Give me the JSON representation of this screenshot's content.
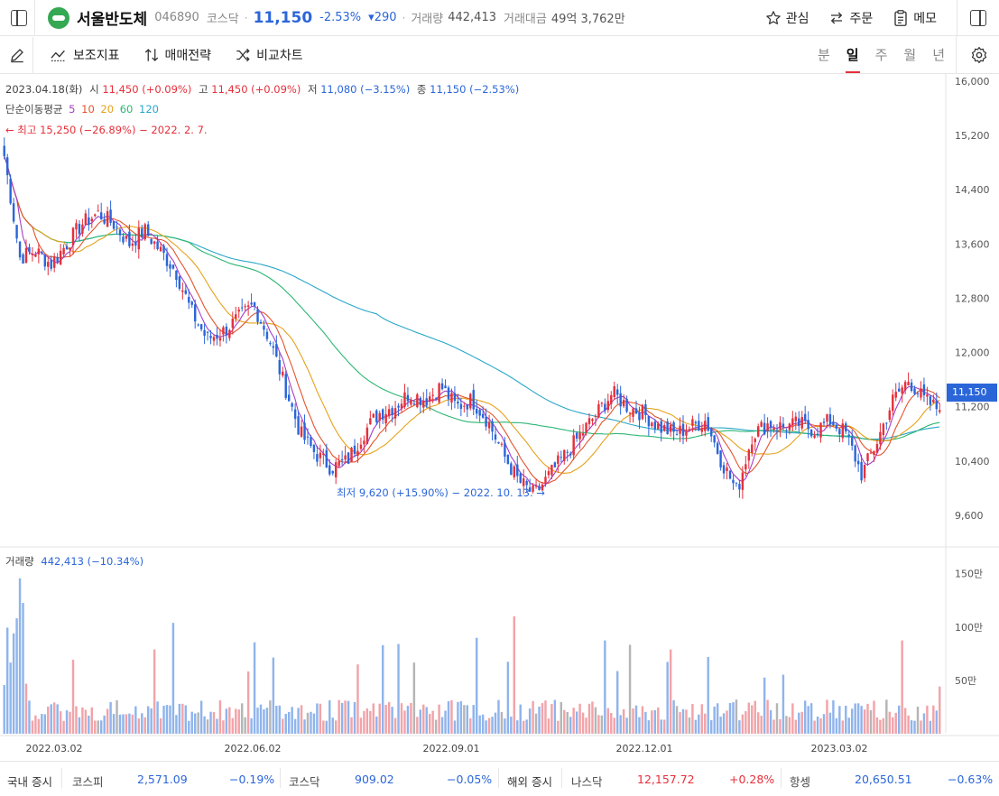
{
  "header": {
    "stock_name": "서울반도체",
    "stock_code": "046890",
    "market": "코스닥",
    "price": "11,150",
    "change_pct": "-2.53%",
    "change_amt": "▾290",
    "volume_label": "거래량",
    "volume": "442,413",
    "amount_label": "거래대금",
    "amount": "49억 3,762만",
    "actions": {
      "watch": "관심",
      "order": "주문",
      "memo": "메모"
    }
  },
  "toolbar": {
    "indicators": "보조지표",
    "strategy": "매매전략",
    "compare": "비교차트",
    "periods": [
      "분",
      "일",
      "주",
      "월",
      "년"
    ],
    "active_period": "일"
  },
  "ohlc": {
    "date": "2023.04.18(화)",
    "open_label": "시",
    "open": "11,450 (+0.09%)",
    "high_label": "고",
    "high": "11,450 (+0.09%)",
    "low_label": "저",
    "low": "11,080 (−3.15%)",
    "close_label": "종",
    "close": "11,150 (−2.53%)"
  },
  "ma": {
    "label": "단순이동평균",
    "periods": [
      "5",
      "10",
      "20",
      "60",
      "120"
    ],
    "colors": [
      "#a53ec8",
      "#e5542d",
      "#e6a21b",
      "#2bb673",
      "#2aa7c9"
    ]
  },
  "annotations": {
    "high_text": "← 최고 15,250 (−26.89%) − 2022. 2. 7.",
    "low_text": "최저 9,620 (+15.90%) − 2022. 10. 13. →"
  },
  "current_price_tag": "11,150",
  "volume_info": {
    "label": "거래량",
    "value": "442,413 (−10.34%)"
  },
  "colors": {
    "up": "#e5303b",
    "down": "#2b66d9",
    "up_vol": "#f2a3a8",
    "down_vol": "#8fb4ec",
    "flat_vol": "#b5b5b5"
  },
  "chart_data": {
    "type": "candlestick",
    "y_axis_ticks": [
      "16,000",
      "15,200",
      "14,400",
      "13,600",
      "12,800",
      "12,000",
      "11,200",
      "10,400",
      "9,600"
    ],
    "ylim": [
      9000,
      16000
    ],
    "volume_axis_ticks": [
      "150만",
      "100만",
      "50만"
    ],
    "x_axis_ticks": [
      "2022.03.02",
      "2022.06.02",
      "2022.09.01",
      "2022.12.01",
      "2023.03.02"
    ],
    "close_path": [
      14900,
      13400,
      13500,
      13300,
      13600,
      13900,
      14050,
      13900,
      13600,
      13800,
      13500,
      13200,
      12600,
      12200,
      12300,
      12500,
      12700,
      12200,
      11500,
      10800,
      10500,
      10300,
      10400,
      10800,
      11100,
      11200,
      11400,
      11300,
      11500,
      11200,
      11300,
      11000,
      10500,
      10100,
      9900,
      10200,
      10500,
      10800,
      11100,
      11400,
      11200,
      11100,
      10900,
      10800,
      10900,
      11000,
      10400,
      9950,
      10800,
      10950,
      10900,
      10950,
      10850,
      11000,
      10800,
      10200,
      10700,
      11300,
      11600,
      11300,
      11150
    ],
    "last_close": 11150,
    "last_volume": 442413
  },
  "footer": {
    "domestic_label": "국내 증시",
    "kospi_label": "코스피",
    "kospi_value": "2,571.09",
    "kospi_change": "−0.19%",
    "kosdaq_label": "코스닥",
    "kosdaq_value": "909.02",
    "kosdaq_change": "−0.05%",
    "overseas_label": "해외 증시",
    "nasdaq_label": "나스닥",
    "nasdaq_value": "12,157.72",
    "nasdaq_change": "+0.28%",
    "hangseng_label": "항셍",
    "hangseng_value": "20,650.51",
    "hangseng_change": "−0.63%"
  }
}
